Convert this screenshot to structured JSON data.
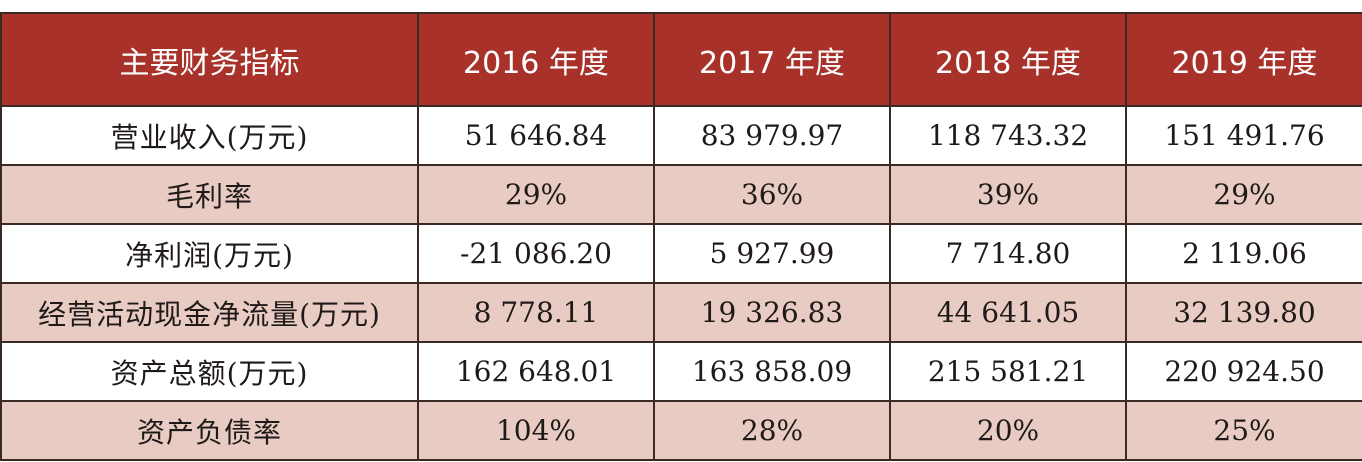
{
  "table": {
    "header": [
      "主要财务指标",
      "2016 年度",
      "2017 年度",
      "2018 年度",
      "2019 年度"
    ],
    "rows": [
      {
        "label": "营业收入(万元)",
        "values": [
          "51 646.84",
          "83 979.97",
          "118 743.32",
          "151 491.76"
        ]
      },
      {
        "label": "毛利率",
        "values": [
          "29%",
          "36%",
          "39%",
          "29%"
        ]
      },
      {
        "label": "净利润(万元)",
        "values": [
          "-21 086.20",
          "5 927.99",
          "7 714.80",
          "2 119.06"
        ]
      },
      {
        "label": "经营活动现金净流量(万元)",
        "values": [
          "8 778.11",
          "19 326.83",
          "44 641.05",
          "32 139.80"
        ]
      },
      {
        "label": "资产总额(万元)",
        "values": [
          "162 648.01",
          "163 858.09",
          "215 581.21",
          "220 924.50"
        ]
      },
      {
        "label": "资产负债率",
        "values": [
          "104%",
          "28%",
          "20%",
          "25%"
        ]
      }
    ]
  },
  "colors": {
    "header_bg": "#a8322a",
    "header_text": "#ffffff",
    "row_alt_bg": "#e8cbc3",
    "row_bg": "#ffffff",
    "border": "#3a2a26"
  }
}
